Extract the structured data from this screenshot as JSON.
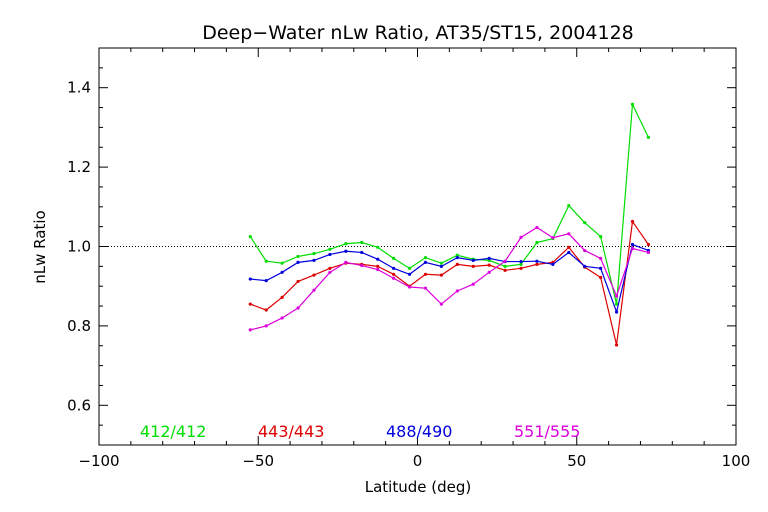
{
  "chart_data": {
    "type": "line",
    "title": "Deep−Water nLw Ratio, AT35/ST15, 2004128",
    "xlabel": "Latitude (deg)",
    "ylabel": "nLw Ratio",
    "xlim": [
      -100,
      100
    ],
    "ylim": [
      0.5,
      1.5
    ],
    "xticks": [
      -100,
      -50,
      0,
      50,
      100
    ],
    "xtick_labels": [
      "−100",
      "−50",
      "0",
      "50",
      "100"
    ],
    "yticks": [
      0.6,
      0.8,
      1.0,
      1.2,
      1.4
    ],
    "ytick_labels": [
      "0.6",
      "0.8",
      "1.0",
      "1.2",
      "1.4"
    ],
    "reference_line": 1.0,
    "x": [
      -52.5,
      -47.5,
      -42.5,
      -37.5,
      -32.5,
      -27.5,
      -22.5,
      -17.5,
      -12.5,
      -7.5,
      -2.5,
      2.5,
      7.5,
      12.5,
      17.5,
      22.5,
      27.5,
      32.5,
      37.5,
      42.5,
      47.5,
      52.5,
      57.5,
      62.5,
      67.5,
      72.5
    ],
    "series": [
      {
        "name": "412/412",
        "color": "#00dd00",
        "values": [
          1.025,
          0.963,
          0.958,
          0.975,
          0.982,
          0.993,
          1.007,
          1.01,
          0.998,
          0.97,
          0.945,
          0.972,
          0.958,
          0.978,
          0.968,
          0.965,
          0.95,
          0.955,
          1.01,
          1.02,
          1.103,
          1.06,
          1.025,
          0.855,
          1.358,
          1.275
        ]
      },
      {
        "name": "443/443",
        "color": "#dd0000",
        "values": [
          0.855,
          0.84,
          0.872,
          0.912,
          0.928,
          0.945,
          0.958,
          0.955,
          0.95,
          0.93,
          0.9,
          0.93,
          0.928,
          0.955,
          0.95,
          0.953,
          0.94,
          0.945,
          0.955,
          0.96,
          0.998,
          0.948,
          0.922,
          0.752,
          1.063,
          1.005
        ]
      },
      {
        "name": "488/490",
        "color": "#0000dd",
        "values": [
          0.918,
          0.914,
          0.935,
          0.96,
          0.965,
          0.98,
          0.988,
          0.985,
          0.968,
          0.945,
          0.93,
          0.96,
          0.95,
          0.972,
          0.965,
          0.97,
          0.962,
          0.962,
          0.963,
          0.955,
          0.985,
          0.95,
          0.945,
          0.835,
          1.005,
          0.99
        ]
      },
      {
        "name": "551/555",
        "color": "#dd00dd",
        "values": [
          0.79,
          0.8,
          0.82,
          0.845,
          0.89,
          0.935,
          0.96,
          0.952,
          0.942,
          0.92,
          0.898,
          0.895,
          0.855,
          0.888,
          0.905,
          0.935,
          0.963,
          1.023,
          1.048,
          1.022,
          1.032,
          0.99,
          0.97,
          0.875,
          0.995,
          0.985
        ]
      }
    ]
  }
}
